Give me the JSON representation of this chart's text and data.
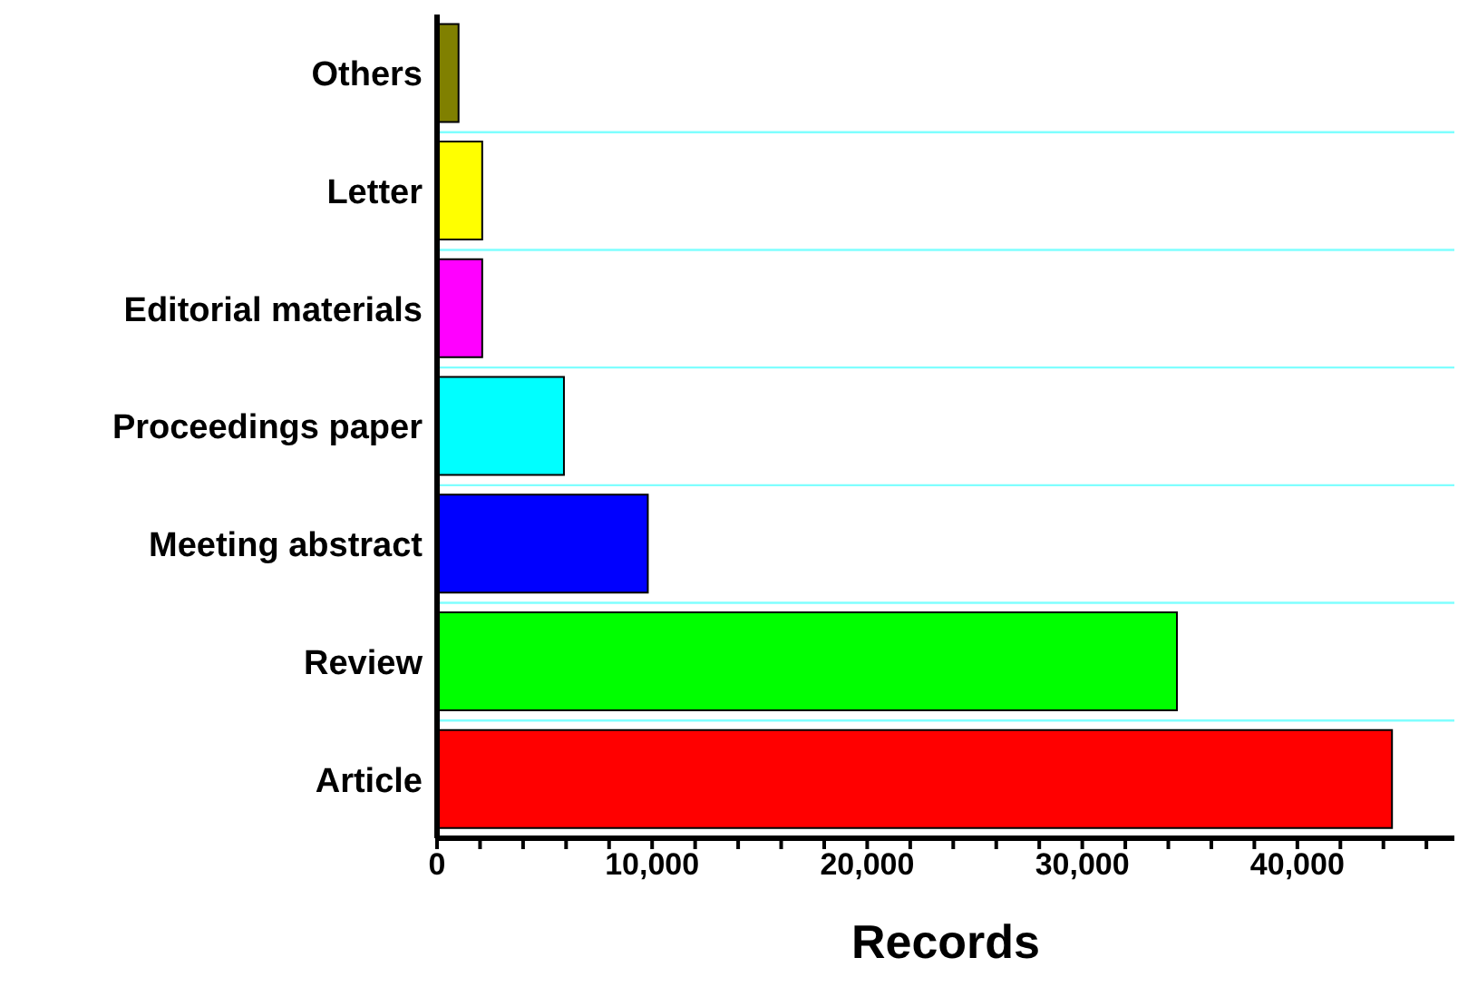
{
  "chart_data": {
    "type": "bar",
    "orientation": "horizontal",
    "xlabel": "Records",
    "categories": [
      "Others",
      "Letter",
      "Editorial materials",
      "Proceedings paper",
      "Meeting abstract",
      "Review",
      "Article"
    ],
    "values": [
      1000,
      2100,
      2100,
      5900,
      9800,
      34400,
      44400
    ],
    "colors": [
      "#808000",
      "#ffff00",
      "#ff00ff",
      "#00ffff",
      "#0000ff",
      "#00ff00",
      "#ff0000"
    ],
    "xlim": [
      0,
      47300
    ],
    "xticks": [
      0,
      {
        "value": 2000,
        "label": null
      },
      {
        "value": 4000,
        "label": null
      },
      {
        "value": 6000,
        "label": null
      },
      {
        "value": 8000,
        "label": null
      },
      {
        "value": 10000,
        "label": "10,000"
      },
      {
        "value": 12000,
        "label": null
      },
      {
        "value": 14000,
        "label": null
      },
      {
        "value": 16000,
        "label": null
      },
      {
        "value": 18000,
        "label": null
      },
      {
        "value": 20000,
        "label": "20,000"
      },
      {
        "value": 22000,
        "label": null
      },
      {
        "value": 24000,
        "label": null
      },
      {
        "value": 26000,
        "label": null
      },
      {
        "value": 28000,
        "label": null
      },
      {
        "value": 30000,
        "label": "30,000"
      },
      {
        "value": 32000,
        "label": null
      },
      {
        "value": 34000,
        "label": null
      },
      {
        "value": 36000,
        "label": null
      },
      {
        "value": 38000,
        "label": null
      },
      {
        "value": 40000,
        "label": "40,000"
      },
      {
        "value": 42000,
        "label": null
      },
      {
        "value": 44000,
        "label": null
      },
      {
        "value": 46000,
        "label": null
      }
    ],
    "grid": "y"
  }
}
